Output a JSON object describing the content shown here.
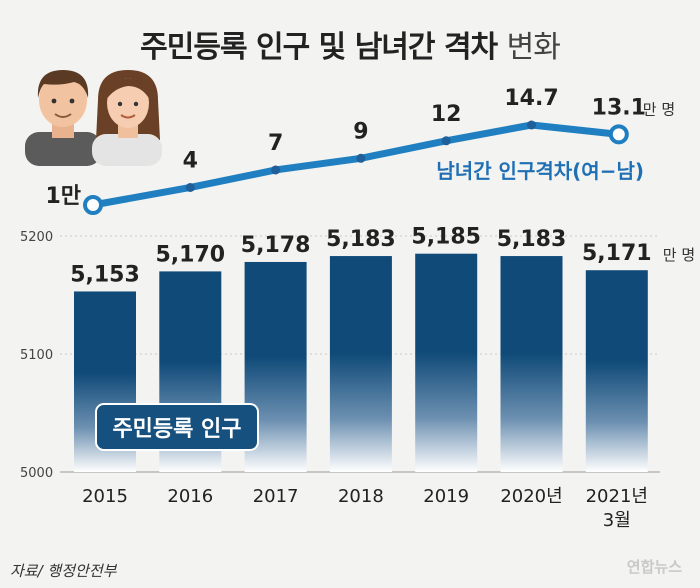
{
  "title": {
    "main": "주민등록 인구 및 남녀간 격차",
    "suffix": "변화"
  },
  "source": "자료/ 행정안전부",
  "watermark": "연합뉴스",
  "colors": {
    "bar_top": "#0f4a78",
    "bar_bottom": "#ffffff",
    "line": "#1f7fc1",
    "line_label": "#1f6fb5",
    "badge_bg": "#15507e",
    "text": "#222222"
  },
  "icons": [
    "man-avatar-icon",
    "woman-avatar-icon"
  ],
  "chart_data": {
    "type": "bar",
    "categories": [
      "2015",
      "2016",
      "2017",
      "2018",
      "2019",
      "2020년",
      "2021년\n3월"
    ],
    "y_ticks": [
      "5200",
      "5100",
      "5000"
    ],
    "ylim": [
      5000,
      5200
    ],
    "series": [
      {
        "name": "주민등록 인구",
        "type": "bar",
        "unit": "만 명",
        "values": [
          5153,
          5170,
          5178,
          5183,
          5185,
          5183,
          5171
        ],
        "labels": [
          "5,153",
          "5,170",
          "5,178",
          "5,183",
          "5,185",
          "5,183",
          "5,171"
        ]
      },
      {
        "name": "남녀간 인구격차(여−남)",
        "type": "line",
        "unit": "만 명",
        "values": [
          1,
          4,
          7,
          9,
          12,
          14.7,
          13.1
        ],
        "labels": [
          "1만",
          "4",
          "7",
          "9",
          "12",
          "14.7",
          "13.1"
        ]
      }
    ],
    "grid": true
  }
}
